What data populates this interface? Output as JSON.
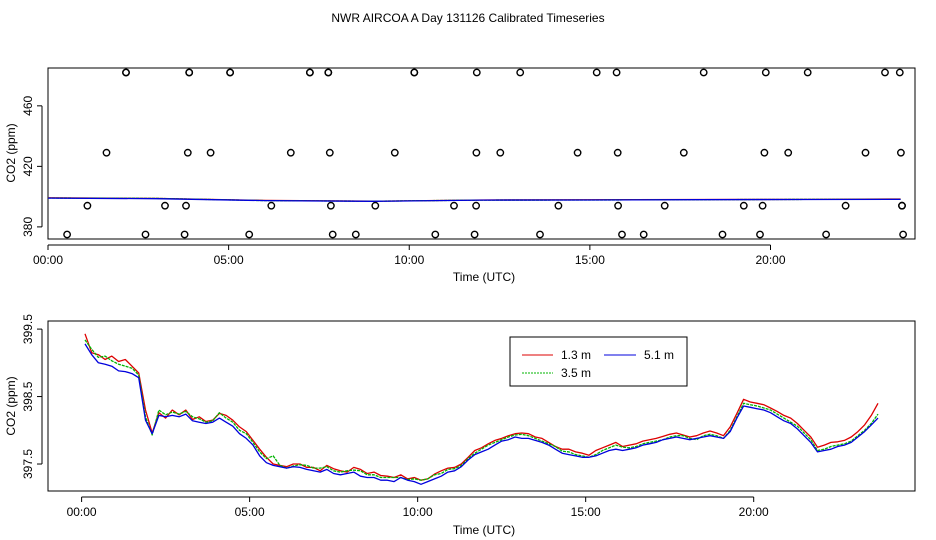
{
  "title": "NWR AIRCOA A  Day 131126  Calibrated Timeseries",
  "colors": {
    "red": "#dd0000",
    "green": "#00b400",
    "blue": "#0000dd",
    "axis": "#000000"
  },
  "chart_data": [
    {
      "id": "top",
      "type": "scatter",
      "xlabel": "Time (UTC)",
      "ylabel": "CO2 (ppm)",
      "xlim": [
        0,
        24
      ],
      "ylim": [
        372,
        485
      ],
      "xticks": [
        0,
        5,
        10,
        15,
        20
      ],
      "xtick_labels": [
        "00:00",
        "05:00",
        "10:00",
        "15:00",
        "20:00"
      ],
      "yticks": [
        380,
        420,
        460
      ],
      "ytick_labels": [
        "380",
        "420",
        "460"
      ],
      "reference_points": {
        "name": "reference cylinder",
        "marker": "open-circle",
        "y": [
          375,
          375,
          375,
          375,
          375,
          375,
          375,
          375,
          375,
          375,
          375,
          375,
          375,
          375,
          375,
          394,
          394,
          394,
          394,
          394,
          394,
          394,
          394,
          394,
          394,
          394,
          394,
          394,
          394,
          394,
          394,
          429,
          429,
          429,
          429,
          429,
          429,
          429,
          429,
          429,
          429,
          429,
          429,
          429,
          429,
          429,
          482,
          482,
          482,
          482,
          482,
          482,
          482,
          482,
          482,
          482,
          482,
          482,
          482,
          482,
          482,
          482,
          482,
          482,
          482,
          482,
          482
        ],
        "x": [
          0.53,
          2.7,
          3.78,
          5.57,
          7.88,
          8.52,
          10.72,
          11.81,
          13.62,
          15.89,
          16.49,
          18.67,
          19.71,
          21.54,
          23.67,
          1.09,
          3.24,
          3.82,
          6.18,
          7.83,
          9.06,
          11.24,
          11.85,
          14.13,
          15.78,
          17.07,
          19.26,
          19.78,
          22.08,
          23.64,
          23.64,
          1.62,
          3.87,
          4.5,
          6.72,
          7.8,
          9.6,
          11.86,
          12.52,
          14.66,
          15.77,
          17.6,
          19.83,
          20.49,
          22.63,
          23.61,
          2.16,
          3.91,
          5.04,
          7.25,
          7.76,
          10.14,
          11.87,
          13.07,
          15.19,
          15.74,
          18.15,
          19.87,
          21.03,
          23.17,
          23.58,
          2.16,
          3.91,
          5.04,
          7.25,
          7.76,
          10.14
        ]
      },
      "series": [
        {
          "name": "1.3 m",
          "color": "red",
          "x": [
            0,
            3,
            6,
            9,
            12,
            15,
            18,
            21,
            23.6
          ],
          "values": [
            399.2,
            398.8,
            397.5,
            397.0,
            397.8,
            397.9,
            398.1,
            398.2,
            398.4
          ]
        },
        {
          "name": "3.5 m",
          "color": "green",
          "x": [
            0,
            3,
            6,
            9,
            12,
            15,
            18,
            21,
            23.6
          ],
          "values": [
            399.1,
            398.8,
            397.4,
            397.0,
            397.7,
            397.8,
            398.0,
            398.2,
            398.2
          ]
        },
        {
          "name": "5.1 m",
          "color": "blue",
          "x": [
            0,
            3,
            6,
            9,
            12,
            15,
            18,
            21,
            23.6
          ],
          "values": [
            399.0,
            398.6,
            397.4,
            396.9,
            397.7,
            397.8,
            398.0,
            398.1,
            398.2
          ]
        }
      ]
    },
    {
      "id": "bottom",
      "type": "line",
      "xlabel": "Time (UTC)",
      "ylabel": "CO2 (ppm)",
      "xlim": [
        -1.0,
        24.8
      ],
      "ylim": [
        397.1,
        399.62
      ],
      "xticks": [
        0,
        5,
        10,
        15,
        20
      ],
      "xtick_labels": [
        "00:00",
        "05:00",
        "10:00",
        "15:00",
        "20:00"
      ],
      "yticks": [
        397.5,
        398.5,
        399.5
      ],
      "ytick_labels": [
        "397.5",
        "398.5",
        "399.5"
      ],
      "legend": {
        "position": "top-right",
        "entries": [
          "1.3 m",
          "3.5 m",
          "5.1 m"
        ]
      },
      "series": [
        {
          "name": "1.3 m",
          "color": "red",
          "x": [
            0.1,
            0.3,
            0.5,
            0.7,
            0.9,
            1.1,
            1.3,
            1.5,
            1.7,
            1.9,
            2.1,
            2.3,
            2.5,
            2.7,
            2.9,
            3.1,
            3.3,
            3.5,
            3.7,
            3.9,
            4.1,
            4.3,
            4.5,
            4.7,
            4.9,
            5.1,
            5.3,
            5.5,
            5.7,
            5.9,
            6.1,
            6.3,
            6.5,
            6.7,
            6.9,
            7.1,
            7.3,
            7.5,
            7.7,
            7.9,
            8.1,
            8.3,
            8.5,
            8.7,
            8.9,
            9.1,
            9.3,
            9.5,
            9.7,
            9.9,
            10.1,
            10.3,
            10.5,
            10.7,
            10.9,
            11.1,
            11.3,
            11.5,
            11.7,
            11.9,
            12.1,
            12.3,
            12.5,
            12.7,
            12.9,
            13.1,
            13.3,
            13.5,
            13.7,
            13.9,
            14.1,
            14.3,
            14.5,
            14.7,
            14.9,
            15.1,
            15.3,
            15.5,
            15.7,
            15.9,
            16.1,
            16.3,
            16.5,
            16.7,
            16.9,
            17.1,
            17.3,
            17.5,
            17.7,
            17.9,
            18.1,
            18.3,
            18.5,
            18.7,
            18.9,
            19.1,
            19.3,
            19.5,
            19.7,
            19.9,
            20.1,
            20.3,
            20.5,
            20.7,
            20.9,
            21.1,
            21.3,
            21.5,
            21.7,
            21.9,
            22.1,
            22.3,
            22.5,
            22.7,
            22.9,
            23.1,
            23.3,
            23.5,
            23.7
          ],
          "values": [
            399.43,
            399.15,
            399.12,
            399.05,
            399.1,
            399.02,
            399.05,
            398.95,
            398.85,
            398.3,
            397.96,
            398.26,
            398.18,
            398.3,
            398.23,
            398.3,
            398.16,
            398.2,
            398.13,
            398.15,
            398.25,
            398.22,
            398.15,
            398.05,
            397.98,
            397.85,
            397.72,
            397.6,
            397.5,
            397.48,
            397.46,
            397.5,
            397.5,
            397.45,
            397.45,
            397.4,
            397.48,
            397.43,
            397.4,
            397.38,
            397.45,
            397.42,
            397.36,
            397.38,
            397.33,
            397.32,
            397.3,
            397.34,
            397.28,
            397.3,
            397.26,
            397.28,
            397.35,
            397.4,
            397.44,
            397.45,
            397.5,
            397.6,
            397.7,
            397.74,
            397.8,
            397.85,
            397.88,
            397.92,
            397.95,
            397.96,
            397.95,
            397.9,
            397.88,
            397.82,
            397.76,
            397.72,
            397.72,
            397.68,
            397.66,
            397.63,
            397.7,
            397.74,
            397.78,
            397.82,
            397.76,
            397.78,
            397.8,
            397.84,
            397.86,
            397.88,
            397.91,
            397.94,
            397.96,
            397.93,
            397.9,
            397.92,
            397.96,
            397.99,
            397.96,
            397.92,
            398.05,
            398.25,
            398.46,
            398.42,
            398.4,
            398.38,
            398.33,
            398.28,
            398.22,
            398.18,
            398.1,
            398.0,
            397.9,
            397.75,
            397.78,
            397.82,
            397.83,
            397.85,
            397.9,
            397.98,
            398.08,
            398.22,
            398.4
          ]
        },
        {
          "name": "3.5 m",
          "color": "green",
          "x": [
            0.1,
            0.3,
            0.5,
            0.7,
            0.9,
            1.1,
            1.3,
            1.5,
            1.7,
            1.9,
            2.1,
            2.3,
            2.5,
            2.7,
            2.9,
            3.1,
            3.3,
            3.5,
            3.7,
            3.9,
            4.1,
            4.3,
            4.5,
            4.7,
            4.9,
            5.1,
            5.3,
            5.5,
            5.7,
            5.9,
            6.1,
            6.3,
            6.5,
            6.7,
            6.9,
            7.1,
            7.3,
            7.5,
            7.7,
            7.9,
            8.1,
            8.3,
            8.5,
            8.7,
            8.9,
            9.1,
            9.3,
            9.5,
            9.7,
            9.9,
            10.1,
            10.3,
            10.5,
            10.7,
            10.9,
            11.1,
            11.3,
            11.5,
            11.7,
            11.9,
            12.1,
            12.3,
            12.5,
            12.7,
            12.9,
            13.1,
            13.3,
            13.5,
            13.7,
            13.9,
            14.1,
            14.3,
            14.5,
            14.7,
            14.9,
            15.1,
            15.3,
            15.5,
            15.7,
            15.9,
            16.1,
            16.3,
            16.5,
            16.7,
            16.9,
            17.1,
            17.3,
            17.5,
            17.7,
            17.9,
            18.1,
            18.3,
            18.5,
            18.7,
            18.9,
            19.1,
            19.3,
            19.5,
            19.7,
            19.9,
            20.1,
            20.3,
            20.5,
            20.7,
            20.9,
            21.1,
            21.3,
            21.5,
            21.7,
            21.9,
            22.1,
            22.3,
            22.5,
            22.7,
            22.9,
            23.1,
            23.3,
            23.5,
            23.7
          ],
          "values": [
            399.34,
            399.2,
            399.08,
            399.1,
            399.03,
            398.98,
            398.95,
            398.92,
            398.82,
            398.2,
            397.93,
            398.3,
            398.23,
            398.27,
            398.24,
            398.28,
            398.2,
            398.17,
            398.12,
            398.14,
            398.26,
            398.18,
            398.12,
            398.0,
            397.95,
            397.82,
            397.68,
            397.58,
            397.62,
            397.48,
            397.44,
            397.47,
            397.49,
            397.48,
            397.44,
            397.44,
            397.46,
            397.4,
            397.38,
            397.4,
            397.41,
            397.4,
            397.34,
            397.34,
            397.3,
            397.3,
            397.3,
            397.3,
            397.27,
            397.28,
            397.26,
            397.28,
            397.34,
            397.36,
            397.42,
            397.43,
            397.48,
            397.58,
            397.66,
            397.72,
            397.78,
            397.82,
            397.86,
            397.9,
            397.93,
            397.94,
            397.92,
            397.88,
            397.84,
            397.8,
            397.76,
            397.69,
            397.68,
            397.64,
            397.62,
            397.6,
            397.64,
            397.7,
            397.74,
            397.78,
            397.75,
            397.74,
            397.76,
            397.8,
            397.82,
            397.84,
            397.86,
            397.9,
            397.92,
            397.92,
            397.88,
            397.86,
            397.92,
            397.94,
            397.92,
            397.88,
            398.0,
            398.2,
            398.4,
            398.38,
            398.36,
            398.33,
            398.3,
            398.24,
            398.18,
            398.12,
            398.06,
            397.96,
            397.86,
            397.7,
            397.72,
            397.76,
            397.78,
            397.8,
            397.84,
            397.92,
            398.0,
            398.1,
            398.24
          ]
        },
        {
          "name": "5.1 m",
          "color": "blue",
          "x": [
            0.1,
            0.3,
            0.5,
            0.7,
            0.9,
            1.1,
            1.3,
            1.5,
            1.7,
            1.9,
            2.1,
            2.3,
            2.5,
            2.7,
            2.9,
            3.1,
            3.3,
            3.5,
            3.7,
            3.9,
            4.1,
            4.3,
            4.5,
            4.7,
            4.9,
            5.1,
            5.3,
            5.5,
            5.7,
            5.9,
            6.1,
            6.3,
            6.5,
            6.7,
            6.9,
            7.1,
            7.3,
            7.5,
            7.7,
            7.9,
            8.1,
            8.3,
            8.5,
            8.7,
            8.9,
            9.1,
            9.3,
            9.5,
            9.7,
            9.9,
            10.1,
            10.3,
            10.5,
            10.7,
            10.9,
            11.1,
            11.3,
            11.5,
            11.7,
            11.9,
            12.1,
            12.3,
            12.5,
            12.7,
            12.9,
            13.1,
            13.3,
            13.5,
            13.7,
            13.9,
            14.1,
            14.3,
            14.5,
            14.7,
            14.9,
            15.1,
            15.3,
            15.5,
            15.7,
            15.9,
            16.1,
            16.3,
            16.5,
            16.7,
            16.9,
            17.1,
            17.3,
            17.5,
            17.7,
            17.9,
            18.1,
            18.3,
            18.5,
            18.7,
            18.9,
            19.1,
            19.3,
            19.5,
            19.7,
            19.9,
            20.1,
            20.3,
            20.5,
            20.7,
            20.9,
            21.1,
            21.3,
            21.5,
            21.7,
            21.9,
            22.1,
            22.3,
            22.5,
            22.7,
            22.9,
            23.1,
            23.3,
            23.5,
            23.7
          ],
          "values": [
            399.28,
            399.12,
            399.0,
            398.98,
            398.95,
            398.88,
            398.87,
            398.84,
            398.78,
            398.15,
            397.95,
            398.22,
            398.2,
            398.22,
            398.2,
            398.24,
            398.14,
            398.12,
            398.1,
            398.12,
            398.18,
            398.12,
            398.06,
            397.95,
            397.88,
            397.78,
            397.62,
            397.52,
            397.48,
            397.46,
            397.44,
            397.46,
            397.45,
            397.42,
            397.4,
            397.38,
            397.42,
            397.36,
            397.34,
            397.36,
            397.38,
            397.32,
            397.3,
            397.3,
            397.26,
            397.26,
            397.24,
            397.3,
            397.26,
            397.24,
            397.2,
            397.24,
            397.28,
            397.32,
            397.38,
            397.4,
            397.46,
            397.56,
            397.64,
            397.68,
            397.72,
            397.78,
            397.84,
            397.86,
            397.9,
            397.88,
            397.88,
            397.85,
            397.82,
            397.78,
            397.72,
            397.66,
            397.64,
            397.62,
            397.6,
            397.6,
            397.62,
            397.66,
            397.7,
            397.72,
            397.7,
            397.72,
            397.74,
            397.78,
            397.8,
            397.82,
            397.86,
            397.88,
            397.9,
            397.88,
            397.86,
            397.88,
            397.9,
            397.92,
            397.9,
            397.88,
            397.98,
            398.18,
            398.36,
            398.34,
            398.32,
            398.3,
            398.26,
            398.2,
            398.14,
            398.1,
            398.02,
            397.92,
            397.82,
            397.68,
            397.7,
            397.72,
            397.76,
            397.78,
            397.82,
            397.9,
            397.98,
            398.08,
            398.18
          ]
        }
      ]
    }
  ]
}
